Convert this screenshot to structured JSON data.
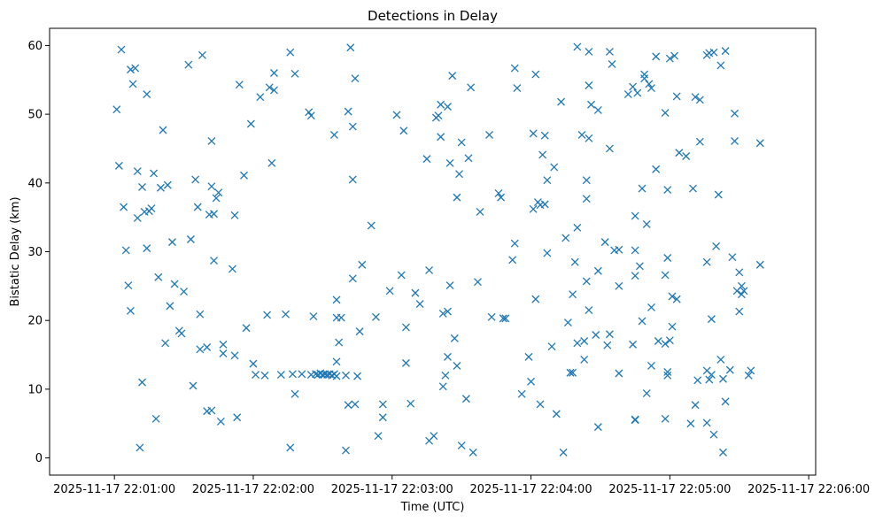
{
  "chart_data": {
    "type": "scatter",
    "title": "Detections in Delay",
    "xlabel": "Time (UTC)",
    "ylabel": "Bistatic Delay (km)",
    "x_unit": "seconds past 2025-11-17 22:00:00 UTC",
    "xlim": [
      32,
      363
    ],
    "ylim": [
      -2.5,
      62.5
    ],
    "x_ticks": [
      60,
      120,
      180,
      240,
      300,
      360
    ],
    "x_tick_labels": [
      "2025-11-17 22:01:00",
      "2025-11-17 22:02:00",
      "2025-11-17 22:03:00",
      "2025-11-17 22:04:00",
      "2025-11-17 22:05:00",
      "2025-11-17 22:06:00"
    ],
    "y_ticks": [
      0,
      10,
      20,
      30,
      40,
      50,
      60
    ],
    "y_tick_labels": [
      "0",
      "10",
      "20",
      "30",
      "40",
      "50",
      "60"
    ],
    "grid": false,
    "marker": "x",
    "color": "#1f77b4",
    "series": [
      {
        "points": [
          [
            63,
            59.4
          ],
          [
            61,
            50.7
          ],
          [
            62,
            42.5
          ],
          [
            64,
            36.5
          ],
          [
            65,
            30.2
          ],
          [
            66,
            25.1
          ],
          [
            67,
            21.4
          ],
          [
            67,
            56.5
          ],
          [
            68,
            54.4
          ],
          [
            69,
            56.7
          ],
          [
            70,
            41.7
          ],
          [
            70,
            34.9
          ],
          [
            71,
            1.5
          ],
          [
            72,
            11.0
          ],
          [
            72,
            39.4
          ],
          [
            73,
            35.8
          ],
          [
            74,
            30.5
          ],
          [
            74,
            52.9
          ],
          [
            75,
            35.9
          ],
          [
            76,
            36.3
          ],
          [
            77,
            41.4
          ],
          [
            78,
            5.7
          ],
          [
            79,
            26.3
          ],
          [
            80,
            39.3
          ],
          [
            81,
            47.7
          ],
          [
            82,
            16.7
          ],
          [
            83,
            39.7
          ],
          [
            84,
            22.1
          ],
          [
            85,
            31.4
          ],
          [
            86,
            25.3
          ],
          [
            88,
            18.5
          ],
          [
            89,
            18.1
          ],
          [
            90,
            24.2
          ],
          [
            92,
            57.2
          ],
          [
            93,
            31.8
          ],
          [
            94,
            10.5
          ],
          [
            95,
            40.5
          ],
          [
            96,
            36.5
          ],
          [
            97,
            20.9
          ],
          [
            97,
            15.8
          ],
          [
            98,
            58.6
          ],
          [
            100,
            6.8
          ],
          [
            100,
            16.1
          ],
          [
            101,
            35.4
          ],
          [
            102,
            6.9
          ],
          [
            102,
            39.5
          ],
          [
            102,
            46.1
          ],
          [
            103,
            28.7
          ],
          [
            103,
            35.5
          ],
          [
            104,
            37.8
          ],
          [
            105,
            38.6
          ],
          [
            106,
            5.3
          ],
          [
            107,
            16.5
          ],
          [
            107,
            15.2
          ],
          [
            111,
            27.5
          ],
          [
            112,
            14.9
          ],
          [
            112,
            35.3
          ],
          [
            113,
            5.9
          ],
          [
            114,
            54.3
          ],
          [
            116,
            41.1
          ],
          [
            117,
            18.9
          ],
          [
            119,
            48.6
          ],
          [
            120,
            13.7
          ],
          [
            121,
            12.1
          ],
          [
            123,
            52.5
          ],
          [
            125,
            12.0
          ],
          [
            126,
            20.8
          ],
          [
            127,
            53.9
          ],
          [
            128,
            42.9
          ],
          [
            129,
            56.0
          ],
          [
            129,
            53.5
          ],
          [
            132,
            12.1
          ],
          [
            134,
            20.9
          ],
          [
            136,
            1.5
          ],
          [
            136,
            59.0
          ],
          [
            137,
            12.2
          ],
          [
            138,
            9.3
          ],
          [
            138,
            55.9
          ],
          [
            141,
            12.2
          ],
          [
            144,
            50.3
          ],
          [
            145,
            12.1
          ],
          [
            145,
            49.8
          ],
          [
            146,
            20.6
          ],
          [
            147,
            12.2
          ],
          [
            148,
            12.1
          ],
          [
            149,
            12.3
          ],
          [
            150,
            12.1
          ],
          [
            151,
            12.2
          ],
          [
            152,
            12.1
          ],
          [
            153,
            12.2
          ],
          [
            154,
            12.0
          ],
          [
            155,
            47.0
          ],
          [
            155,
            12.2
          ],
          [
            156,
            23.0
          ],
          [
            156,
            14.0
          ],
          [
            156,
            20.4
          ],
          [
            156,
            11.9
          ],
          [
            157,
            16.8
          ],
          [
            158,
            20.4
          ],
          [
            160,
            1.1
          ],
          [
            160,
            12.0
          ],
          [
            161,
            50.4
          ],
          [
            161,
            7.7
          ],
          [
            162,
            59.7
          ],
          [
            163,
            48.2
          ],
          [
            163,
            40.5
          ],
          [
            163,
            26.1
          ],
          [
            164,
            55.2
          ],
          [
            164,
            7.8
          ],
          [
            165,
            11.9
          ],
          [
            166,
            18.4
          ],
          [
            167,
            28.1
          ],
          [
            171,
            33.8
          ],
          [
            173,
            20.5
          ],
          [
            174,
            3.2
          ],
          [
            176,
            7.8
          ],
          [
            176,
            5.9
          ],
          [
            179,
            24.3
          ],
          [
            182,
            49.9
          ],
          [
            184,
            26.6
          ],
          [
            185,
            47.6
          ],
          [
            186,
            19.0
          ],
          [
            186,
            13.8
          ],
          [
            188,
            7.9
          ],
          [
            190,
            24.0
          ],
          [
            192,
            22.4
          ],
          [
            195,
            43.5
          ],
          [
            196,
            27.3
          ],
          [
            196,
            2.5
          ],
          [
            198,
            3.2
          ],
          [
            199,
            49.5
          ],
          [
            200,
            49.8
          ],
          [
            201,
            46.7
          ],
          [
            201,
            51.4
          ],
          [
            202,
            10.4
          ],
          [
            202,
            21.0
          ],
          [
            203,
            12.0
          ],
          [
            204,
            51.1
          ],
          [
            204,
            14.7
          ],
          [
            204,
            21.3
          ],
          [
            205,
            42.9
          ],
          [
            205,
            25.1
          ],
          [
            206,
            55.6
          ],
          [
            207,
            17.4
          ],
          [
            208,
            13.4
          ],
          [
            208,
            37.9
          ],
          [
            209,
            41.3
          ],
          [
            210,
            45.9
          ],
          [
            210,
            1.8
          ],
          [
            212,
            8.6
          ],
          [
            213,
            43.6
          ],
          [
            214,
            53.9
          ],
          [
            215,
            0.8
          ],
          [
            217,
            25.6
          ],
          [
            218,
            35.8
          ],
          [
            222,
            47.0
          ],
          [
            223,
            20.5
          ],
          [
            226,
            38.5
          ],
          [
            227,
            37.9
          ],
          [
            228,
            20.3
          ],
          [
            229,
            20.3
          ],
          [
            232,
            28.8
          ],
          [
            233,
            31.2
          ],
          [
            233,
            56.7
          ],
          [
            234,
            53.8
          ],
          [
            236,
            9.3
          ],
          [
            239,
            14.7
          ],
          [
            240,
            11.1
          ],
          [
            241,
            36.2
          ],
          [
            241,
            47.2
          ],
          [
            242,
            23.1
          ],
          [
            242,
            55.8
          ],
          [
            243,
            37.2
          ],
          [
            244,
            7.8
          ],
          [
            244,
            36.8
          ],
          [
            245,
            44.1
          ],
          [
            246,
            46.9
          ],
          [
            246,
            36.9
          ],
          [
            247,
            40.4
          ],
          [
            247,
            29.8
          ],
          [
            249,
            16.2
          ],
          [
            250,
            42.3
          ],
          [
            251,
            6.4
          ],
          [
            253,
            51.8
          ],
          [
            254,
            0.8
          ],
          [
            255,
            32.0
          ],
          [
            256,
            19.7
          ],
          [
            257,
            12.4
          ],
          [
            258,
            12.4
          ],
          [
            258,
            23.8
          ],
          [
            259,
            28.5
          ],
          [
            260,
            16.7
          ],
          [
            260,
            33.5
          ],
          [
            260,
            59.8
          ],
          [
            262,
            47.0
          ],
          [
            263,
            14.3
          ],
          [
            263,
            17.0
          ],
          [
            264,
            25.7
          ],
          [
            264,
            40.4
          ],
          [
            264,
            37.7
          ],
          [
            265,
            21.5
          ],
          [
            265,
            54.2
          ],
          [
            265,
            46.5
          ],
          [
            265,
            59.1
          ],
          [
            266,
            51.4
          ],
          [
            268,
            17.9
          ],
          [
            269,
            50.6
          ],
          [
            269,
            27.2
          ],
          [
            269,
            4.5
          ],
          [
            272,
            31.4
          ],
          [
            273,
            16.4
          ],
          [
            274,
            59.1
          ],
          [
            274,
            18.0
          ],
          [
            274,
            45.0
          ],
          [
            275,
            57.3
          ],
          [
            276,
            30.2
          ],
          [
            278,
            30.3
          ],
          [
            278,
            25.0
          ],
          [
            278,
            12.3
          ],
          [
            282,
            52.9
          ],
          [
            284,
            16.5
          ],
          [
            284,
            54.0
          ],
          [
            285,
            26.5
          ],
          [
            285,
            35.2
          ],
          [
            285,
            30.2
          ],
          [
            285,
            5.6
          ],
          [
            285,
            5.5
          ],
          [
            286,
            53.1
          ],
          [
            287,
            27.9
          ],
          [
            288,
            39.2
          ],
          [
            288,
            19.9
          ],
          [
            289,
            55.8
          ],
          [
            289,
            55.2
          ],
          [
            290,
            9.4
          ],
          [
            290,
            34.0
          ],
          [
            291,
            54.4
          ],
          [
            292,
            53.8
          ],
          [
            292,
            13.4
          ],
          [
            292,
            21.9
          ],
          [
            294,
            58.4
          ],
          [
            294,
            42.0
          ],
          [
            295,
            17.0
          ],
          [
            298,
            5.7
          ],
          [
            298,
            16.6
          ],
          [
            298,
            26.6
          ],
          [
            298,
            50.2
          ],
          [
            299,
            12.0
          ],
          [
            299,
            12.5
          ],
          [
            299,
            29.1
          ],
          [
            299,
            39.0
          ],
          [
            300,
            58.1
          ],
          [
            300,
            17.1
          ],
          [
            301,
            23.5
          ],
          [
            301,
            19.1
          ],
          [
            302,
            58.5
          ],
          [
            303,
            52.6
          ],
          [
            303,
            23.1
          ],
          [
            304,
            44.4
          ],
          [
            307,
            43.9
          ],
          [
            309,
            5.0
          ],
          [
            310,
            39.2
          ],
          [
            311,
            52.5
          ],
          [
            311,
            7.7
          ],
          [
            312,
            11.3
          ],
          [
            313,
            46.0
          ],
          [
            313,
            52.1
          ],
          [
            316,
            28.5
          ],
          [
            316,
            5.1
          ],
          [
            316,
            12.7
          ],
          [
            316,
            58.6
          ],
          [
            317,
            58.9
          ],
          [
            317,
            11.4
          ],
          [
            318,
            20.2
          ],
          [
            318,
            12.1
          ],
          [
            319,
            3.4
          ],
          [
            319,
            59.0
          ],
          [
            320,
            30.8
          ],
          [
            321,
            38.3
          ],
          [
            322,
            14.3
          ],
          [
            322,
            57.1
          ],
          [
            323,
            11.5
          ],
          [
            323,
            0.8
          ],
          [
            324,
            8.2
          ],
          [
            324,
            59.2
          ],
          [
            326,
            12.8
          ],
          [
            327,
            29.2
          ],
          [
            328,
            50.1
          ],
          [
            328,
            46.1
          ],
          [
            329,
            24.3
          ],
          [
            330,
            27.0
          ],
          [
            330,
            21.3
          ],
          [
            331,
            25.0
          ],
          [
            331,
            23.8
          ],
          [
            332,
            24.3
          ],
          [
            334,
            12.0
          ],
          [
            335,
            12.7
          ],
          [
            339,
            28.1
          ],
          [
            339,
            45.8
          ]
        ]
      }
    ]
  }
}
